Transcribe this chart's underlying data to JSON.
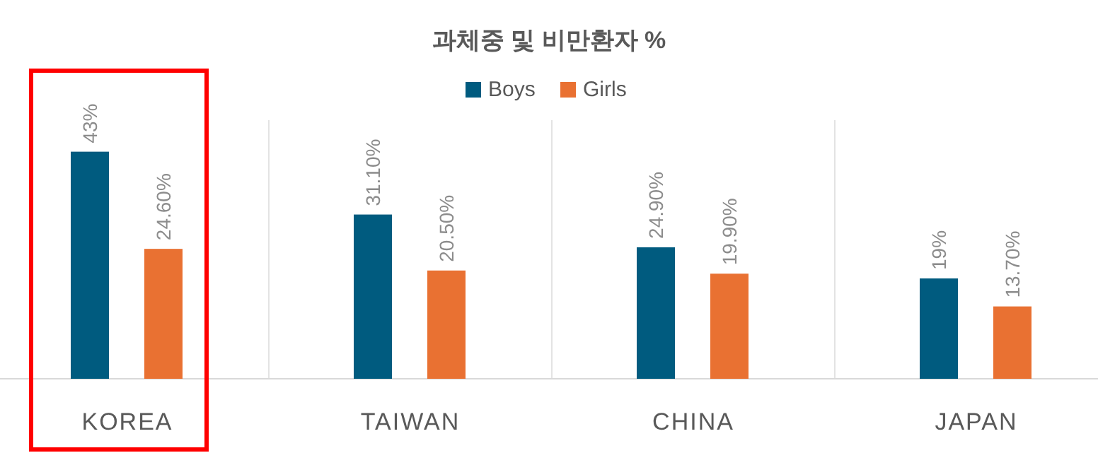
{
  "chart_data": {
    "type": "bar",
    "title": "과체중 및 비만환자 %",
    "categories": [
      "KOREA",
      "TAIWAN",
      "CHINA",
      "JAPAN"
    ],
    "series": [
      {
        "name": "Boys",
        "color": "#005b7f",
        "values": [
          43,
          31.1,
          24.9,
          19
        ],
        "value_labels": [
          "43%",
          "31.10%",
          "24.90%",
          "19%"
        ]
      },
      {
        "name": "Girls",
        "color": "#e97132",
        "values": [
          24.6,
          20.5,
          19.9,
          13.7
        ],
        "value_labels": [
          "24.60%",
          "20.50%",
          "19.90%",
          "13.70%"
        ]
      }
    ],
    "legend": "top"
  }
}
